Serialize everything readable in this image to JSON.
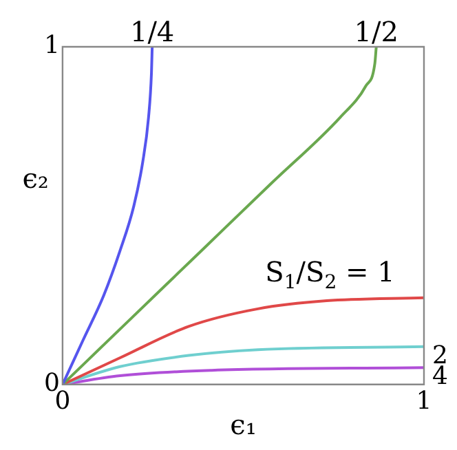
{
  "chart_data": {
    "type": "line",
    "xlabel": "ϵ₁",
    "ylabel": "ϵ₂",
    "xlim": [
      0,
      1
    ],
    "ylim": [
      0,
      1
    ],
    "xticks": [
      0,
      1
    ],
    "yticks": [
      0,
      1
    ],
    "grid": false,
    "legend": false,
    "series": [
      {
        "color": "#5555ee",
        "x": [
          0,
          0.057,
          0.114,
          0.159,
          0.197,
          0.222,
          0.238,
          0.246,
          0.248
        ],
        "values": [
          0,
          0.132,
          0.264,
          0.396,
          0.528,
          0.66,
          0.792,
          0.923,
          1
        ]
      },
      {
        "color": "#6aa84f",
        "x": [
          0,
          0.192,
          0.384,
          0.576,
          0.769,
          0.839,
          0.864,
          0.868
        ],
        "values": [
          0,
          0.198,
          0.396,
          0.594,
          0.792,
          0.884,
          0.95,
          1
        ]
      },
      {
        "color": "#e04848",
        "x": [
          0,
          0.159,
          0.349,
          0.54,
          0.731,
          1
        ],
        "values": [
          0,
          0.079,
          0.172,
          0.224,
          0.248,
          0.257
        ]
      },
      {
        "color": "#6fcfcf",
        "x": [
          0,
          0.159,
          0.349,
          0.54,
          1
        ],
        "values": [
          0,
          0.053,
          0.086,
          0.103,
          0.112
        ]
      },
      {
        "color": "#b04fd8",
        "x": [
          0,
          0.159,
          0.413,
          1
        ],
        "values": [
          0,
          0.026,
          0.042,
          0.05
        ]
      }
    ],
    "annotations": [
      {
        "text": "1/4",
        "x": 0.248,
        "y": 1
      },
      {
        "text": "1/2",
        "x": 0.868,
        "y": 1
      },
      {
        "text": "S$_{1}$/S$_{2}$ = 1",
        "x": 0.74,
        "y": 0.257
      },
      {
        "text": "2",
        "x": 1,
        "y": 0.112
      },
      {
        "text": "4",
        "x": 1,
        "y": 0.05
      }
    ]
  }
}
